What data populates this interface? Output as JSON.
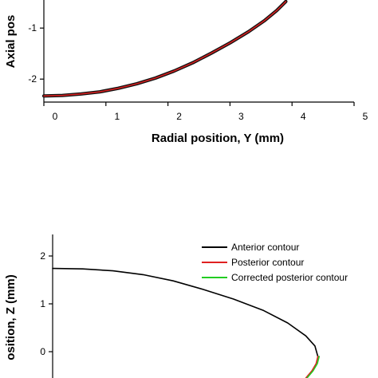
{
  "chart_data": [
    {
      "type": "line",
      "xlabel": "Radial position, Y (mm)",
      "ylabel": "Axial pos",
      "xlim": [
        0,
        5
      ],
      "ylim": [
        -2.45,
        -0.45
      ],
      "x_ticks": [
        "0",
        "1",
        "2",
        "3",
        "4",
        "5"
      ],
      "y_ticks": [
        "-1",
        "-2"
      ],
      "grid": false,
      "series": [
        {
          "color": "#d62020",
          "outline_color": "#111111",
          "x": [
            0.0,
            0.3,
            0.6,
            0.9,
            1.2,
            1.5,
            1.8,
            2.1,
            2.4,
            2.7,
            3.0,
            3.3,
            3.55,
            3.75,
            3.9
          ],
          "y": [
            -2.33,
            -2.32,
            -2.29,
            -2.25,
            -2.18,
            -2.09,
            -1.98,
            -1.84,
            -1.68,
            -1.49,
            -1.29,
            -1.07,
            -0.86,
            -0.66,
            -0.48
          ]
        }
      ]
    },
    {
      "type": "line",
      "xlabel": "",
      "ylabel": "osition, Z (mm)",
      "xlim": [
        0,
        5
      ],
      "ylim": [
        -0.55,
        2.35
      ],
      "y_ticks": [
        "2",
        "1",
        "0"
      ],
      "grid": false,
      "legend_position": "top-right",
      "series": [
        {
          "name": "Anterior contour",
          "color": "#000000",
          "x": [
            0.0,
            0.5,
            1.0,
            1.5,
            2.0,
            2.5,
            3.0,
            3.5,
            3.9,
            4.2,
            4.35,
            4.4
          ],
          "y": [
            1.74,
            1.73,
            1.69,
            1.61,
            1.48,
            1.3,
            1.1,
            0.86,
            0.6,
            0.33,
            0.12,
            -0.1
          ]
        },
        {
          "name": "Posterior contour",
          "color": "#e02020",
          "x": [
            4.4,
            4.37,
            4.3,
            4.2
          ],
          "y": [
            -0.1,
            -0.25,
            -0.4,
            -0.55
          ]
        },
        {
          "name": "Corrected posterior contour",
          "color": "#22cc22",
          "x": [
            4.42,
            4.39,
            4.32,
            4.22
          ],
          "y": [
            -0.1,
            -0.25,
            -0.4,
            -0.55
          ]
        }
      ]
    }
  ]
}
